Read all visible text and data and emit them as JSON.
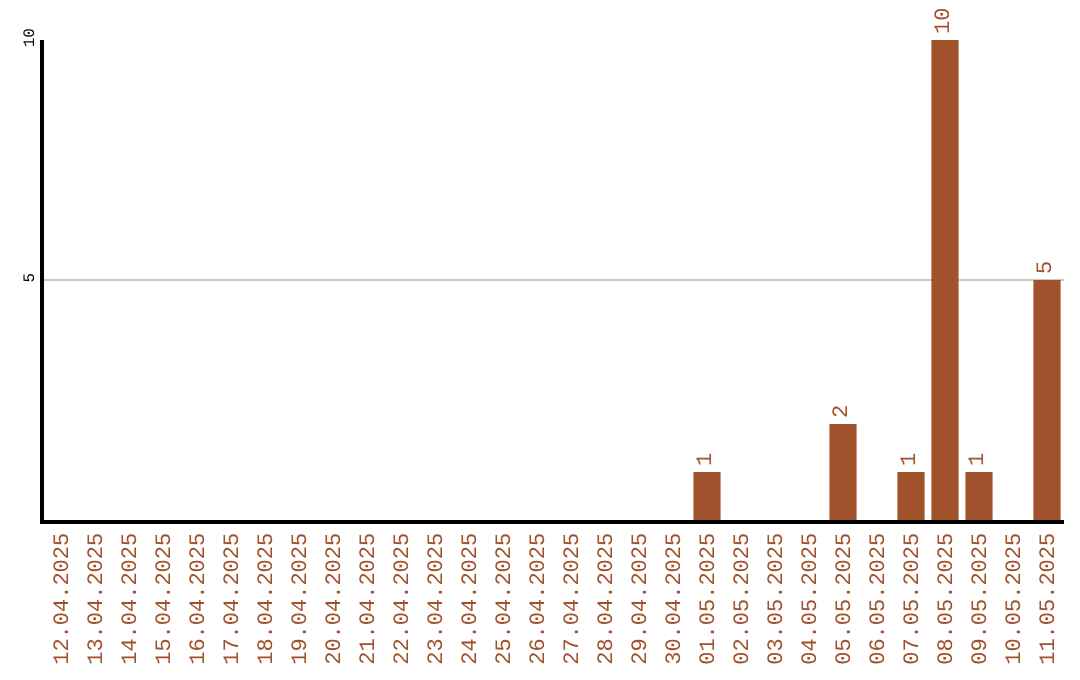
{
  "chart_data": {
    "type": "bar",
    "categories": [
      "12.04.2025",
      "13.04.2025",
      "14.04.2025",
      "15.04.2025",
      "16.04.2025",
      "17.04.2025",
      "18.04.2025",
      "19.04.2025",
      "20.04.2025",
      "21.04.2025",
      "22.04.2025",
      "23.04.2025",
      "24.04.2025",
      "25.04.2025",
      "26.04.2025",
      "27.04.2025",
      "28.04.2025",
      "29.04.2025",
      "30.04.2025",
      "01.05.2025",
      "02.05.2025",
      "03.05.2025",
      "04.05.2025",
      "05.05.2025",
      "06.05.2025",
      "07.05.2025",
      "08.05.2025",
      "09.05.2025",
      "10.05.2025",
      "11.05.2025"
    ],
    "values": [
      0,
      0,
      0,
      0,
      0,
      0,
      0,
      0,
      0,
      0,
      0,
      0,
      0,
      0,
      0,
      0,
      0,
      0,
      0,
      1,
      0,
      0,
      0,
      2,
      0,
      1,
      10,
      1,
      0,
      5
    ],
    "value_labels": [
      null,
      null,
      null,
      null,
      null,
      null,
      null,
      null,
      null,
      null,
      null,
      null,
      null,
      null,
      null,
      null,
      null,
      null,
      null,
      "1",
      null,
      null,
      null,
      "2",
      null,
      "1",
      "10",
      "1",
      null,
      "5"
    ],
    "color": "#a0522d",
    "ylim": [
      0,
      10
    ],
    "yticks": [
      5,
      10
    ],
    "grid": "y",
    "legend": false
  }
}
